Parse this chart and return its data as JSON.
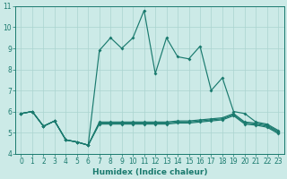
{
  "xlabel": "Humidex (Indice chaleur)",
  "bg_color": "#cceae7",
  "grid_color": "#aad4d0",
  "line_color": "#1a7a6e",
  "xlim": [
    -0.5,
    23.5
  ],
  "ylim": [
    4,
    11
  ],
  "yticks": [
    4,
    5,
    6,
    7,
    8,
    9,
    10,
    11
  ],
  "xticks": [
    0,
    1,
    2,
    3,
    4,
    5,
    6,
    7,
    8,
    9,
    10,
    11,
    12,
    13,
    14,
    15,
    16,
    17,
    18,
    19,
    20,
    21,
    22,
    23
  ],
  "series1_x": [
    0,
    1,
    2,
    3,
    4,
    5,
    6,
    7,
    8,
    9,
    10,
    11,
    12,
    13,
    14,
    15,
    16,
    17,
    18,
    19,
    20,
    21,
    22,
    23
  ],
  "series1_y": [
    5.9,
    6.0,
    5.3,
    5.55,
    4.65,
    4.55,
    4.4,
    8.9,
    9.5,
    9.0,
    9.5,
    10.8,
    7.8,
    9.5,
    8.6,
    8.5,
    9.1,
    7.0,
    7.6,
    6.0,
    5.9,
    5.5,
    5.4,
    5.1
  ],
  "series2_x": [
    0,
    1,
    2,
    3,
    4,
    5,
    6,
    7,
    8,
    9,
    10,
    11,
    12,
    13,
    14,
    15,
    16,
    17,
    18,
    19,
    20,
    21,
    22,
    23
  ],
  "series2_y": [
    5.9,
    6.0,
    5.3,
    5.55,
    4.65,
    4.55,
    4.4,
    5.5,
    5.5,
    5.5,
    5.5,
    5.5,
    5.5,
    5.5,
    5.55,
    5.55,
    5.6,
    5.65,
    5.7,
    5.9,
    5.5,
    5.45,
    5.35,
    5.05
  ],
  "series3_x": [
    0,
    1,
    2,
    3,
    4,
    5,
    6,
    7,
    8,
    9,
    10,
    11,
    12,
    13,
    14,
    15,
    16,
    17,
    18,
    19,
    20,
    21,
    22,
    23
  ],
  "series3_y": [
    5.9,
    6.0,
    5.3,
    5.55,
    4.65,
    4.55,
    4.4,
    5.45,
    5.45,
    5.45,
    5.45,
    5.45,
    5.45,
    5.45,
    5.5,
    5.5,
    5.55,
    5.6,
    5.65,
    5.85,
    5.45,
    5.4,
    5.3,
    5.0
  ],
  "series4_x": [
    0,
    1,
    2,
    3,
    4,
    5,
    6,
    7,
    8,
    9,
    10,
    11,
    12,
    13,
    14,
    15,
    16,
    17,
    18,
    19,
    20,
    21,
    22,
    23
  ],
  "series4_y": [
    5.9,
    6.0,
    5.3,
    5.55,
    4.65,
    4.55,
    4.4,
    5.4,
    5.4,
    5.4,
    5.4,
    5.4,
    5.4,
    5.4,
    5.45,
    5.45,
    5.5,
    5.55,
    5.6,
    5.8,
    5.4,
    5.35,
    5.25,
    4.95
  ]
}
